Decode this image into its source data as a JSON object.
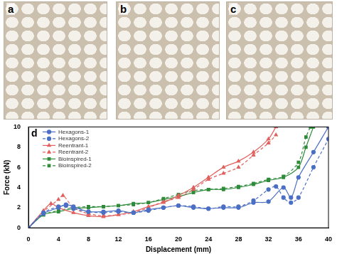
{
  "photos": [
    {
      "label": "a"
    },
    {
      "label": "b"
    },
    {
      "label": "c"
    }
  ],
  "chart_data": {
    "type": "line",
    "annotations": [
      "d"
    ],
    "x_label": "Displacement (mm)",
    "y_label": "Force (kN)",
    "xlim": [
      0,
      40
    ],
    "xticks": [
      0,
      4,
      8,
      12,
      16,
      20,
      24,
      28,
      32,
      36,
      40
    ],
    "ylim": [
      0,
      10
    ],
    "yticks": [
      0,
      2,
      4,
      6,
      8,
      10
    ],
    "grid": false,
    "legend": "top-left",
    "series": [
      {
        "name": "Hexagons-1",
        "color": "#4a6fc4",
        "marker": "circle",
        "line_style": "solid",
        "x": [
          0,
          2,
          4,
          5,
          6,
          8,
          10,
          12,
          14,
          16,
          18,
          20,
          22,
          24,
          26,
          28,
          30,
          32,
          34,
          35,
          36,
          38,
          40
        ],
        "values": [
          0,
          1.4,
          2.0,
          2.3,
          2.1,
          1.6,
          1.6,
          1.7,
          1.5,
          1.8,
          2.0,
          2.2,
          2.0,
          1.9,
          2.0,
          2.0,
          2.5,
          2.6,
          4.0,
          3.0,
          5.0,
          7.5,
          10
        ]
      },
      {
        "name": "Hexagons-2",
        "color": "#4a6fc4",
        "marker": "circle",
        "line_style": "dashed",
        "x": [
          0,
          2,
          4,
          5,
          6,
          8,
          10,
          12,
          14,
          16,
          18,
          20,
          22,
          24,
          26,
          28,
          30,
          32,
          33,
          34,
          35,
          36,
          38,
          40
        ],
        "values": [
          0,
          1.5,
          2.1,
          2.2,
          1.9,
          1.6,
          1.5,
          1.6,
          1.5,
          1.7,
          2.0,
          2.2,
          2.1,
          1.9,
          2.1,
          2.1,
          2.7,
          3.8,
          4.1,
          3.0,
          2.5,
          3.0,
          6.0,
          8.8
        ]
      },
      {
        "name": "Reentrant-1",
        "color": "#e0605e",
        "marker": "triangle",
        "line_style": "solid",
        "x": [
          0,
          2,
          3,
          4,
          6,
          8,
          10,
          12,
          14,
          16,
          18,
          20,
          22,
          24,
          26,
          28,
          30,
          32,
          33
        ],
        "values": [
          0,
          1.7,
          2.4,
          2.0,
          1.5,
          1.2,
          1.1,
          1.3,
          1.6,
          2.1,
          2.5,
          3.2,
          4.0,
          5.0,
          6.0,
          6.6,
          7.5,
          8.8,
          10
        ]
      },
      {
        "name": "Reentrant-2",
        "color": "#e0605e",
        "marker": "triangle",
        "line_style": "dashed",
        "x": [
          0,
          2,
          4,
          4.6,
          6,
          8,
          10,
          12,
          14,
          16,
          18,
          20,
          22,
          24,
          26,
          28,
          30,
          32,
          33
        ],
        "values": [
          0,
          1.6,
          2.8,
          3.2,
          2.0,
          1.4,
          1.2,
          1.3,
          1.5,
          2.0,
          2.6,
          3.0,
          3.8,
          4.8,
          5.4,
          6.0,
          7.2,
          8.4,
          9.2
        ]
      },
      {
        "name": "Bioinspired-1",
        "color": "#2e8b3a",
        "marker": "square",
        "line_style": "solid",
        "x": [
          0,
          2,
          4,
          6,
          8,
          10,
          12,
          14,
          16,
          18,
          20,
          22,
          24,
          26,
          28,
          30,
          32,
          34,
          36,
          37,
          38
        ],
        "values": [
          0,
          1.3,
          1.6,
          1.9,
          2.0,
          2.1,
          2.2,
          2.4,
          2.5,
          2.8,
          3.1,
          3.5,
          3.8,
          3.8,
          4.0,
          4.3,
          4.7,
          5.0,
          6.0,
          8.0,
          10
        ]
      },
      {
        "name": "Bioinspired-2",
        "color": "#2e8b3a",
        "marker": "square",
        "line_style": "dashed",
        "x": [
          0,
          2,
          4,
          6,
          8,
          10,
          12,
          14,
          16,
          18,
          20,
          22,
          24,
          26,
          28,
          30,
          32,
          34,
          36,
          37,
          37.6
        ],
        "values": [
          0,
          1.3,
          1.7,
          2.0,
          2.1,
          2.1,
          2.2,
          2.3,
          2.5,
          2.9,
          3.3,
          3.7,
          3.8,
          3.9,
          4.1,
          4.4,
          4.8,
          5.1,
          6.5,
          9.0,
          10
        ]
      }
    ]
  }
}
